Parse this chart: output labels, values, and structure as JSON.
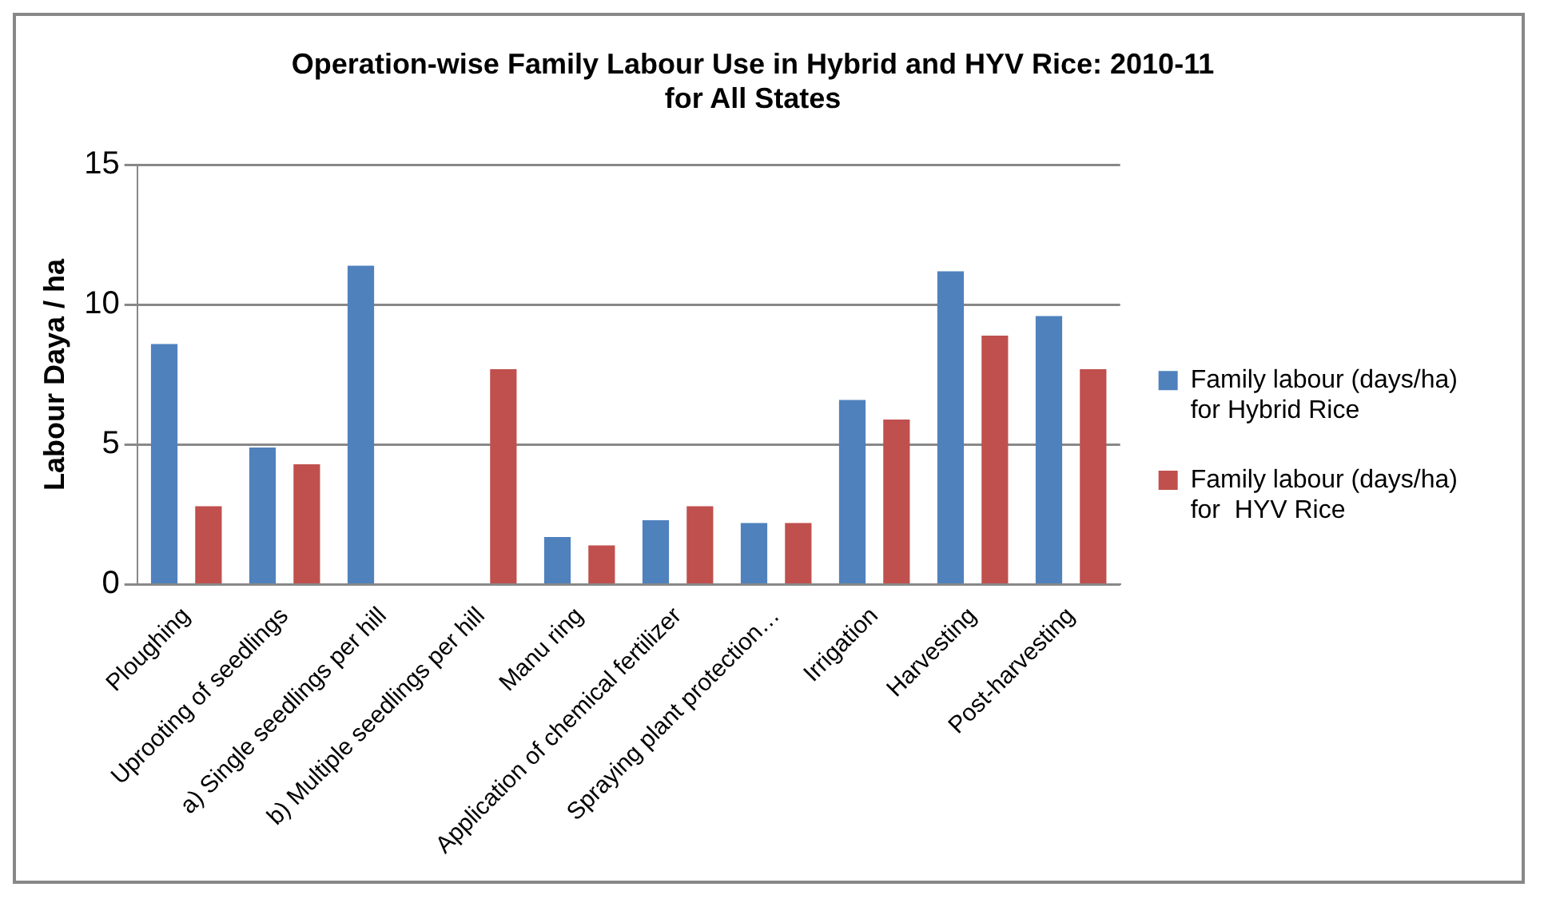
{
  "chart_data": {
    "type": "bar",
    "title": "Operation-wise Family Labour Use in Hybrid and HYV Rice: 2010-11\nfor All States",
    "ylabel": "Labour Daya / ha",
    "categories": [
      "Ploughing",
      "Uprooting of seedlings",
      "a) Single seedlings per hill",
      "b) Multiple seedlings per hill",
      "Manu ring",
      "Application of chemical fertilizer",
      "Spraying plant protection…",
      "Irrigation",
      "Harvesting",
      "Post-harvesting"
    ],
    "series": [
      {
        "name": "Family labour (days/ha)\nfor Hybrid Rice",
        "color": "#4f81bd",
        "values": [
          8.6,
          4.9,
          11.4,
          0,
          1.7,
          2.3,
          2.2,
          6.6,
          11.2,
          9.6
        ]
      },
      {
        "name": "Family labour (days/ha)\nfor  HYV Rice",
        "color": "#c0504d",
        "values": [
          2.8,
          4.3,
          0,
          7.7,
          1.4,
          2.8,
          2.2,
          5.9,
          8.9,
          7.7
        ]
      }
    ],
    "ylim": [
      0,
      15
    ],
    "yticks": [
      0,
      5,
      10,
      15
    ],
    "grid": "y",
    "legend": "right"
  }
}
